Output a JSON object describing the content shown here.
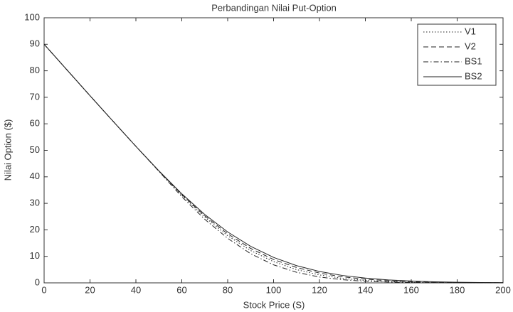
{
  "chart_data": {
    "type": "line",
    "title": "Perbandingan Nilai Put-Option",
    "x_label": "Stock Price (S)",
    "y_label": "Nilai Option ($)",
    "x": [
      0,
      10,
      20,
      30,
      40,
      50,
      60,
      70,
      80,
      90,
      100,
      110,
      120,
      130,
      140,
      150,
      160,
      170,
      180,
      190,
      200
    ],
    "series": [
      {
        "name": "V1",
        "color": "#222222",
        "line_style": "dotted",
        "values": [
          90,
          80.3,
          70.6,
          61,
          51.5,
          42.2,
          33,
          24.8,
          17.8,
          12.2,
          8,
          5,
          3,
          1.7,
          0.9,
          0.5,
          0.2,
          0.1,
          0.05,
          0.02,
          0.01
        ]
      },
      {
        "name": "V2",
        "color": "#222222",
        "line_style": "dashed",
        "values": [
          90,
          80.3,
          70.6,
          61,
          51.5,
          42.2,
          33.3,
          25.3,
          18.5,
          13,
          8.8,
          5.8,
          3.7,
          2.3,
          1.4,
          0.8,
          0.45,
          0.25,
          0.13,
          0.07,
          0.04
        ]
      },
      {
        "name": "BS1",
        "color": "#222222",
        "line_style": "dashdot",
        "values": [
          90,
          80.3,
          70.6,
          61,
          51.5,
          42.1,
          32.5,
          24,
          16.8,
          11,
          6.8,
          4,
          2.2,
          1.2,
          0.6,
          0.3,
          0.15,
          0.07,
          0.03,
          0.01,
          0
        ]
      },
      {
        "name": "BS2",
        "color": "#222222",
        "line_style": "solid",
        "values": [
          90,
          80.3,
          70.6,
          61,
          51.5,
          42.3,
          33.6,
          25.8,
          19.2,
          13.8,
          9.6,
          6.5,
          4.3,
          2.8,
          1.8,
          1.1,
          0.7,
          0.4,
          0.25,
          0.15,
          0.1
        ]
      }
    ],
    "xlim": [
      0,
      200
    ],
    "xticks": [
      0,
      20,
      40,
      60,
      80,
      100,
      120,
      140,
      160,
      180,
      200
    ],
    "ylim": [
      0,
      100
    ],
    "yticks": [
      0,
      10,
      20,
      30,
      40,
      50,
      60,
      70,
      80,
      90,
      100
    ],
    "grid": false,
    "legend_position": "northeast"
  }
}
